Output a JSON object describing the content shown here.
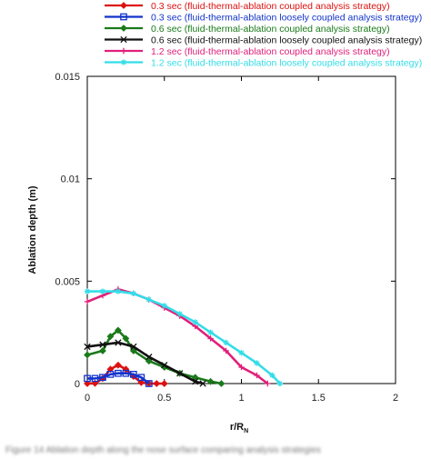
{
  "chart_data": {
    "type": "line",
    "xlabel": "r/R",
    "xlabel_sub": "N",
    "ylabel": "Ablation depth (m)",
    "xlim": [
      0,
      2
    ],
    "ylim": [
      0,
      0.015
    ],
    "x_ticks": [
      "0",
      "0.5",
      "1",
      "1.5",
      "2"
    ],
    "y_ticks": [
      "0",
      "0.005",
      "0.01",
      "0.015"
    ],
    "grid": false,
    "legend_position": "top",
    "series": [
      {
        "name": "0.3 sec (fluid-thermal-ablation coupled analysis strategy)",
        "color": "#dd1111",
        "marker": "diamond",
        "x": [
          0,
          0.05,
          0.1,
          0.15,
          0.2,
          0.25,
          0.3,
          0.35,
          0.4,
          0.45,
          0.5
        ],
        "y": [
          0,
          1e-05,
          0.00025,
          0.0007,
          0.0009,
          0.0007,
          0.00035,
          5e-05,
          0,
          0,
          0
        ]
      },
      {
        "name": "0.3 sec (fluid-thermal-ablation loosely coupled analysis strategy)",
        "color": "#1133cc",
        "marker": "square",
        "x": [
          0,
          0.05,
          0.1,
          0.15,
          0.2,
          0.25,
          0.3,
          0.35,
          0.4
        ],
        "y": [
          0.00025,
          0.00025,
          0.0003,
          0.00045,
          0.0005,
          0.0005,
          0.00045,
          0.0003,
          0
        ]
      },
      {
        "name": "0.6 sec (fluid-thermal-ablation coupled analysis strategy)",
        "color": "#1a7a1a",
        "marker": "diamond",
        "x": [
          0,
          0.1,
          0.15,
          0.2,
          0.25,
          0.3,
          0.4,
          0.5,
          0.6,
          0.7,
          0.8,
          0.87
        ],
        "y": [
          0.0014,
          0.0016,
          0.0023,
          0.0026,
          0.0022,
          0.0016,
          0.0011,
          0.0008,
          0.0005,
          0.0003,
          0.0001,
          0
        ]
      },
      {
        "name": "0.6 sec (fluid-thermal-ablation loosely coupled analysis strategy)",
        "color": "#111111",
        "marker": "x",
        "x": [
          0,
          0.1,
          0.2,
          0.3,
          0.4,
          0.5,
          0.6,
          0.7,
          0.75
        ],
        "y": [
          0.0018,
          0.0019,
          0.002,
          0.0018,
          0.0013,
          0.0009,
          0.0005,
          0.0001,
          0
        ]
      },
      {
        "name": "1.2 sec (fluid-thermal-ablation coupled analysis strategy)",
        "color": "#e0207a",
        "marker": "plus",
        "x": [
          0,
          0.1,
          0.2,
          0.3,
          0.4,
          0.5,
          0.6,
          0.7,
          0.8,
          0.9,
          1.0,
          1.1,
          1.17
        ],
        "y": [
          0.004,
          0.0043,
          0.0046,
          0.0044,
          0.0041,
          0.0037,
          0.0033,
          0.0028,
          0.0022,
          0.0016,
          0.0008,
          0.0004,
          0
        ]
      },
      {
        "name": "1.2 sec (fluid-thermal-ablation loosely coupled analysis strategy)",
        "color": "#33dde8",
        "marker": "star",
        "x": [
          0,
          0.1,
          0.2,
          0.3,
          0.4,
          0.5,
          0.6,
          0.7,
          0.8,
          0.9,
          1.0,
          1.1,
          1.2,
          1.25
        ],
        "y": [
          0.0045,
          0.0045,
          0.0045,
          0.0044,
          0.0041,
          0.0038,
          0.0034,
          0.003,
          0.0025,
          0.002,
          0.0015,
          0.001,
          0.0004,
          0
        ]
      }
    ]
  },
  "caption": "Figure 14  Ablation depth along the nose surface comparing analysis strategies"
}
